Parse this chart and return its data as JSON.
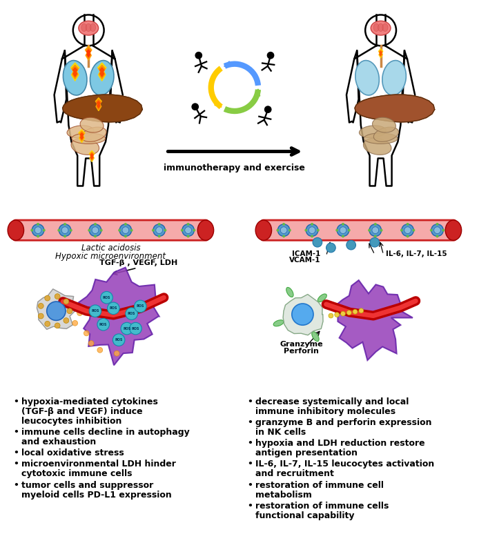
{
  "bg_color": "#ffffff",
  "left_bullets": [
    [
      "hypoxia-mediated cytokines",
      "(TGF-β and VEGF) induce",
      "leucocytes inhibition"
    ],
    [
      "immune cells decline in autophagy",
      "and exhaustion"
    ],
    [
      "local oxidative stress"
    ],
    [
      "microenvironmental LDH hinder",
      "cytotoxic immune cells"
    ],
    [
      "tumor cells and suppressor",
      "myeloid cells PD-L1 expression"
    ]
  ],
  "right_bullets": [
    [
      "decrease systemically and local",
      "immune inhibitory molecules"
    ],
    [
      "granzyme B and perforin expression",
      "in NK cells"
    ],
    [
      "hypoxia and LDH reduction restore",
      "antigen presentation"
    ],
    [
      "IL-6, IL-7, IL-15 leucocytes activation",
      "and recruitment"
    ],
    [
      "restoration of immune cell",
      "metabolism"
    ],
    [
      "restoration of immune cells",
      "functional capability"
    ]
  ],
  "arrow_label": "immunotherapy and exercise",
  "left_vessel_label1": "Lactic acidosis",
  "left_vessel_label2": "Hypoxic microenvironment",
  "left_tumor_label": "TGF-β , VEGF, LDH",
  "right_vessel_label1": "ICAM-1",
  "right_vessel_label2": "VCAM-1",
  "right_vessel_label3": "IL-6, IL-7, IL-15",
  "right_tumor_label1": "Granzyme",
  "right_tumor_label2": "Perforin"
}
